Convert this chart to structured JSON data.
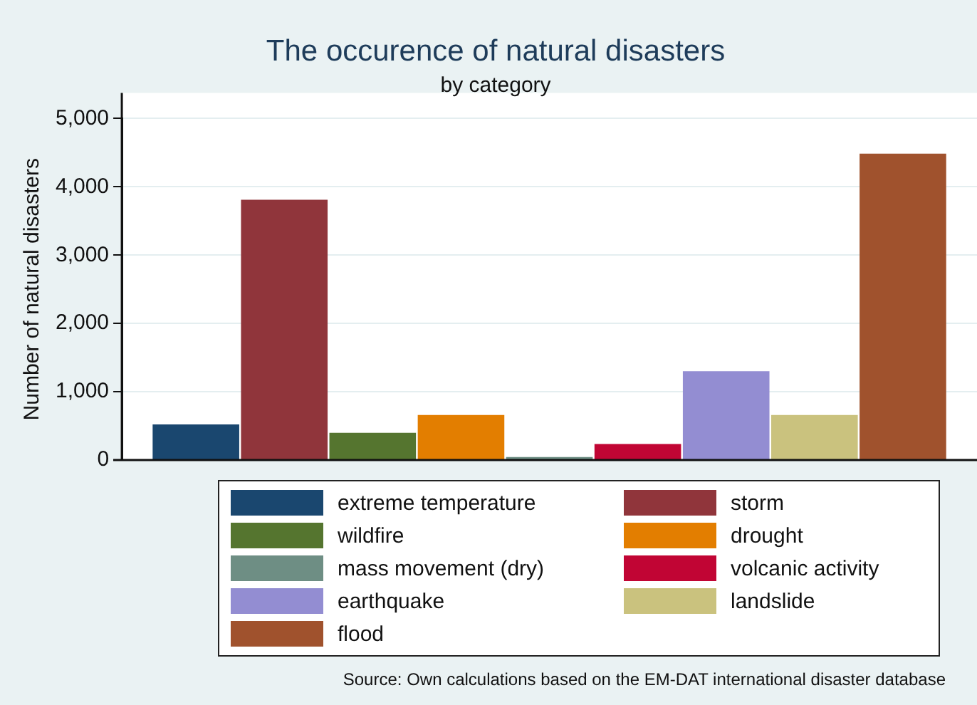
{
  "chart_data": {
    "type": "bar",
    "title": "The occurence of natural disasters",
    "subtitle": "by category",
    "ylabel": "Number of natural disasters",
    "categories": [
      null
    ],
    "series": [
      {
        "name": "extreme temperature",
        "color": "#1a476f",
        "values": [
          520
        ]
      },
      {
        "name": "storm",
        "color": "#90353b",
        "values": [
          3810
        ]
      },
      {
        "name": "wildfire",
        "color": "#55752f",
        "values": [
          400
        ]
      },
      {
        "name": "drought",
        "color": "#e37e00",
        "values": [
          660
        ]
      },
      {
        "name": "mass movement (dry)",
        "color": "#6e8e84",
        "values": [
          45
        ]
      },
      {
        "name": "volcanic activity",
        "color": "#c10534",
        "values": [
          235
        ]
      },
      {
        "name": "earthquake",
        "color": "#938dd2",
        "values": [
          1300
        ]
      },
      {
        "name": "landslide",
        "color": "#cac27e",
        "values": [
          660
        ]
      },
      {
        "name": "flood",
        "color": "#a0522d",
        "values": [
          4485
        ]
      }
    ],
    "ylim": [
      0,
      5000
    ],
    "yticks": [
      {
        "value": 0,
        "label": "0"
      },
      {
        "value": 1000,
        "label": "1,000"
      },
      {
        "value": 2000,
        "label": "2,000"
      },
      {
        "value": 3000,
        "label": "3,000"
      },
      {
        "value": 4000,
        "label": "4,000"
      },
      {
        "value": 5000,
        "label": "5,000"
      }
    ],
    "grid": "y",
    "legend": "bottom",
    "annotations": [
      "Source:  Own calculations based on the EM-DAT international disaster database"
    ]
  }
}
